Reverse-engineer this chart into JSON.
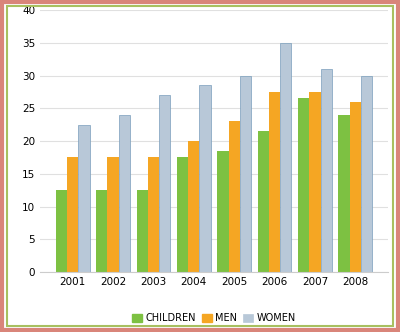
{
  "years": [
    2001,
    2002,
    2003,
    2004,
    2005,
    2006,
    2007,
    2008
  ],
  "children": [
    12.5,
    12.5,
    12.5,
    17.5,
    18.5,
    21.5,
    26.5,
    24.0
  ],
  "men": [
    17.5,
    17.5,
    17.5,
    20.0,
    23.0,
    27.5,
    27.5,
    26.0
  ],
  "women": [
    22.5,
    24.0,
    27.0,
    28.5,
    30.0,
    35.0,
    31.0,
    30.0
  ],
  "children_color": "#7DC142",
  "men_color": "#F5A623",
  "women_color": "#B8C8D8",
  "women_edge_color": "#7A9EBC",
  "ylim": [
    0,
    40
  ],
  "yticks": [
    0,
    5,
    10,
    15,
    20,
    25,
    30,
    35,
    40
  ],
  "legend_labels": [
    "CHILDREN",
    "MEN",
    "WOMEN"
  ],
  "background_color": "#FFFFFF",
  "border_color_outer": "#D9857A",
  "border_color_inner": "#A8C060",
  "grid_color": "#E0E0E0",
  "bar_width": 0.28
}
